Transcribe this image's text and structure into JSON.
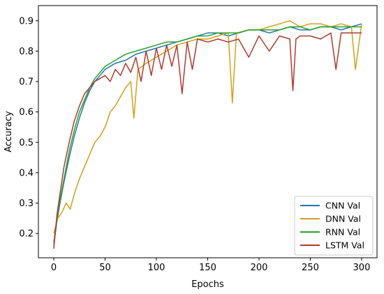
{
  "chart_data": {
    "type": "line",
    "title": "",
    "xlabel": "Epochs",
    "ylabel": "Accuracy",
    "xlim": [
      -15,
      315
    ],
    "ylim": [
      0.12,
      0.95
    ],
    "xticks": [
      0,
      50,
      100,
      150,
      200,
      250,
      300
    ],
    "yticks": [
      0.2,
      0.3,
      0.4,
      0.5,
      0.6,
      0.7,
      0.8,
      0.9
    ],
    "grid": false,
    "legend_position": "bottom-right",
    "series": [
      {
        "name": "CNN Val",
        "color": "#1f77b4",
        "x": [
          0,
          3,
          6,
          10,
          15,
          20,
          25,
          30,
          35,
          40,
          45,
          50,
          55,
          60,
          70,
          80,
          90,
          100,
          110,
          120,
          130,
          140,
          150,
          160,
          170,
          180,
          190,
          200,
          210,
          220,
          230,
          240,
          250,
          260,
          270,
          280,
          290,
          300
        ],
        "y": [
          0.16,
          0.24,
          0.3,
          0.37,
          0.45,
          0.52,
          0.58,
          0.63,
          0.67,
          0.7,
          0.72,
          0.74,
          0.75,
          0.76,
          0.77,
          0.79,
          0.8,
          0.81,
          0.82,
          0.83,
          0.84,
          0.85,
          0.86,
          0.86,
          0.85,
          0.86,
          0.87,
          0.87,
          0.86,
          0.87,
          0.88,
          0.87,
          0.87,
          0.88,
          0.88,
          0.87,
          0.88,
          0.89
        ]
      },
      {
        "name": "DNN Val",
        "color": "#d4a017",
        "x": [
          0,
          4,
          8,
          12,
          16,
          20,
          25,
          30,
          35,
          40,
          45,
          50,
          55,
          60,
          65,
          70,
          75,
          78,
          82,
          90,
          100,
          110,
          120,
          130,
          140,
          150,
          160,
          170,
          174,
          178,
          190,
          200,
          210,
          220,
          230,
          240,
          250,
          260,
          270,
          280,
          290,
          294,
          300
        ],
        "y": [
          0.2,
          0.25,
          0.27,
          0.3,
          0.28,
          0.33,
          0.38,
          0.42,
          0.46,
          0.5,
          0.52,
          0.55,
          0.6,
          0.62,
          0.65,
          0.68,
          0.7,
          0.58,
          0.74,
          0.76,
          0.78,
          0.8,
          0.82,
          0.83,
          0.84,
          0.84,
          0.85,
          0.86,
          0.63,
          0.86,
          0.87,
          0.87,
          0.88,
          0.89,
          0.9,
          0.88,
          0.89,
          0.89,
          0.88,
          0.89,
          0.88,
          0.74,
          0.89
        ]
      },
      {
        "name": "RNN Val",
        "color": "#2ca02c",
        "x": [
          0,
          3,
          6,
          10,
          15,
          20,
          25,
          30,
          35,
          40,
          45,
          50,
          55,
          60,
          70,
          80,
          90,
          100,
          110,
          120,
          130,
          140,
          150,
          160,
          170,
          180,
          190,
          200,
          210,
          220,
          230,
          240,
          250,
          260,
          270,
          280,
          290,
          300
        ],
        "y": [
          0.17,
          0.25,
          0.31,
          0.38,
          0.47,
          0.54,
          0.6,
          0.64,
          0.68,
          0.71,
          0.73,
          0.75,
          0.76,
          0.77,
          0.79,
          0.8,
          0.81,
          0.82,
          0.83,
          0.83,
          0.84,
          0.85,
          0.85,
          0.86,
          0.86,
          0.86,
          0.87,
          0.87,
          0.87,
          0.87,
          0.88,
          0.88,
          0.87,
          0.88,
          0.88,
          0.88,
          0.88,
          0.88
        ]
      },
      {
        "name": "LSTM Val",
        "color": "#b03a2e",
        "x": [
          0,
          3,
          6,
          10,
          15,
          20,
          25,
          30,
          35,
          40,
          45,
          50,
          55,
          60,
          65,
          70,
          75,
          80,
          85,
          90,
          95,
          100,
          105,
          110,
          115,
          120,
          125,
          130,
          135,
          140,
          150,
          160,
          170,
          180,
          190,
          200,
          210,
          220,
          230,
          233,
          236,
          240,
          250,
          260,
          270,
          275,
          280,
          290,
          300
        ],
        "y": [
          0.15,
          0.26,
          0.33,
          0.42,
          0.5,
          0.57,
          0.62,
          0.66,
          0.68,
          0.7,
          0.71,
          0.72,
          0.7,
          0.74,
          0.72,
          0.76,
          0.73,
          0.78,
          0.7,
          0.8,
          0.72,
          0.81,
          0.74,
          0.82,
          0.75,
          0.82,
          0.66,
          0.83,
          0.74,
          0.84,
          0.83,
          0.84,
          0.83,
          0.84,
          0.78,
          0.85,
          0.8,
          0.85,
          0.84,
          0.67,
          0.84,
          0.85,
          0.85,
          0.84,
          0.86,
          0.74,
          0.86,
          0.86,
          0.86
        ]
      }
    ]
  }
}
